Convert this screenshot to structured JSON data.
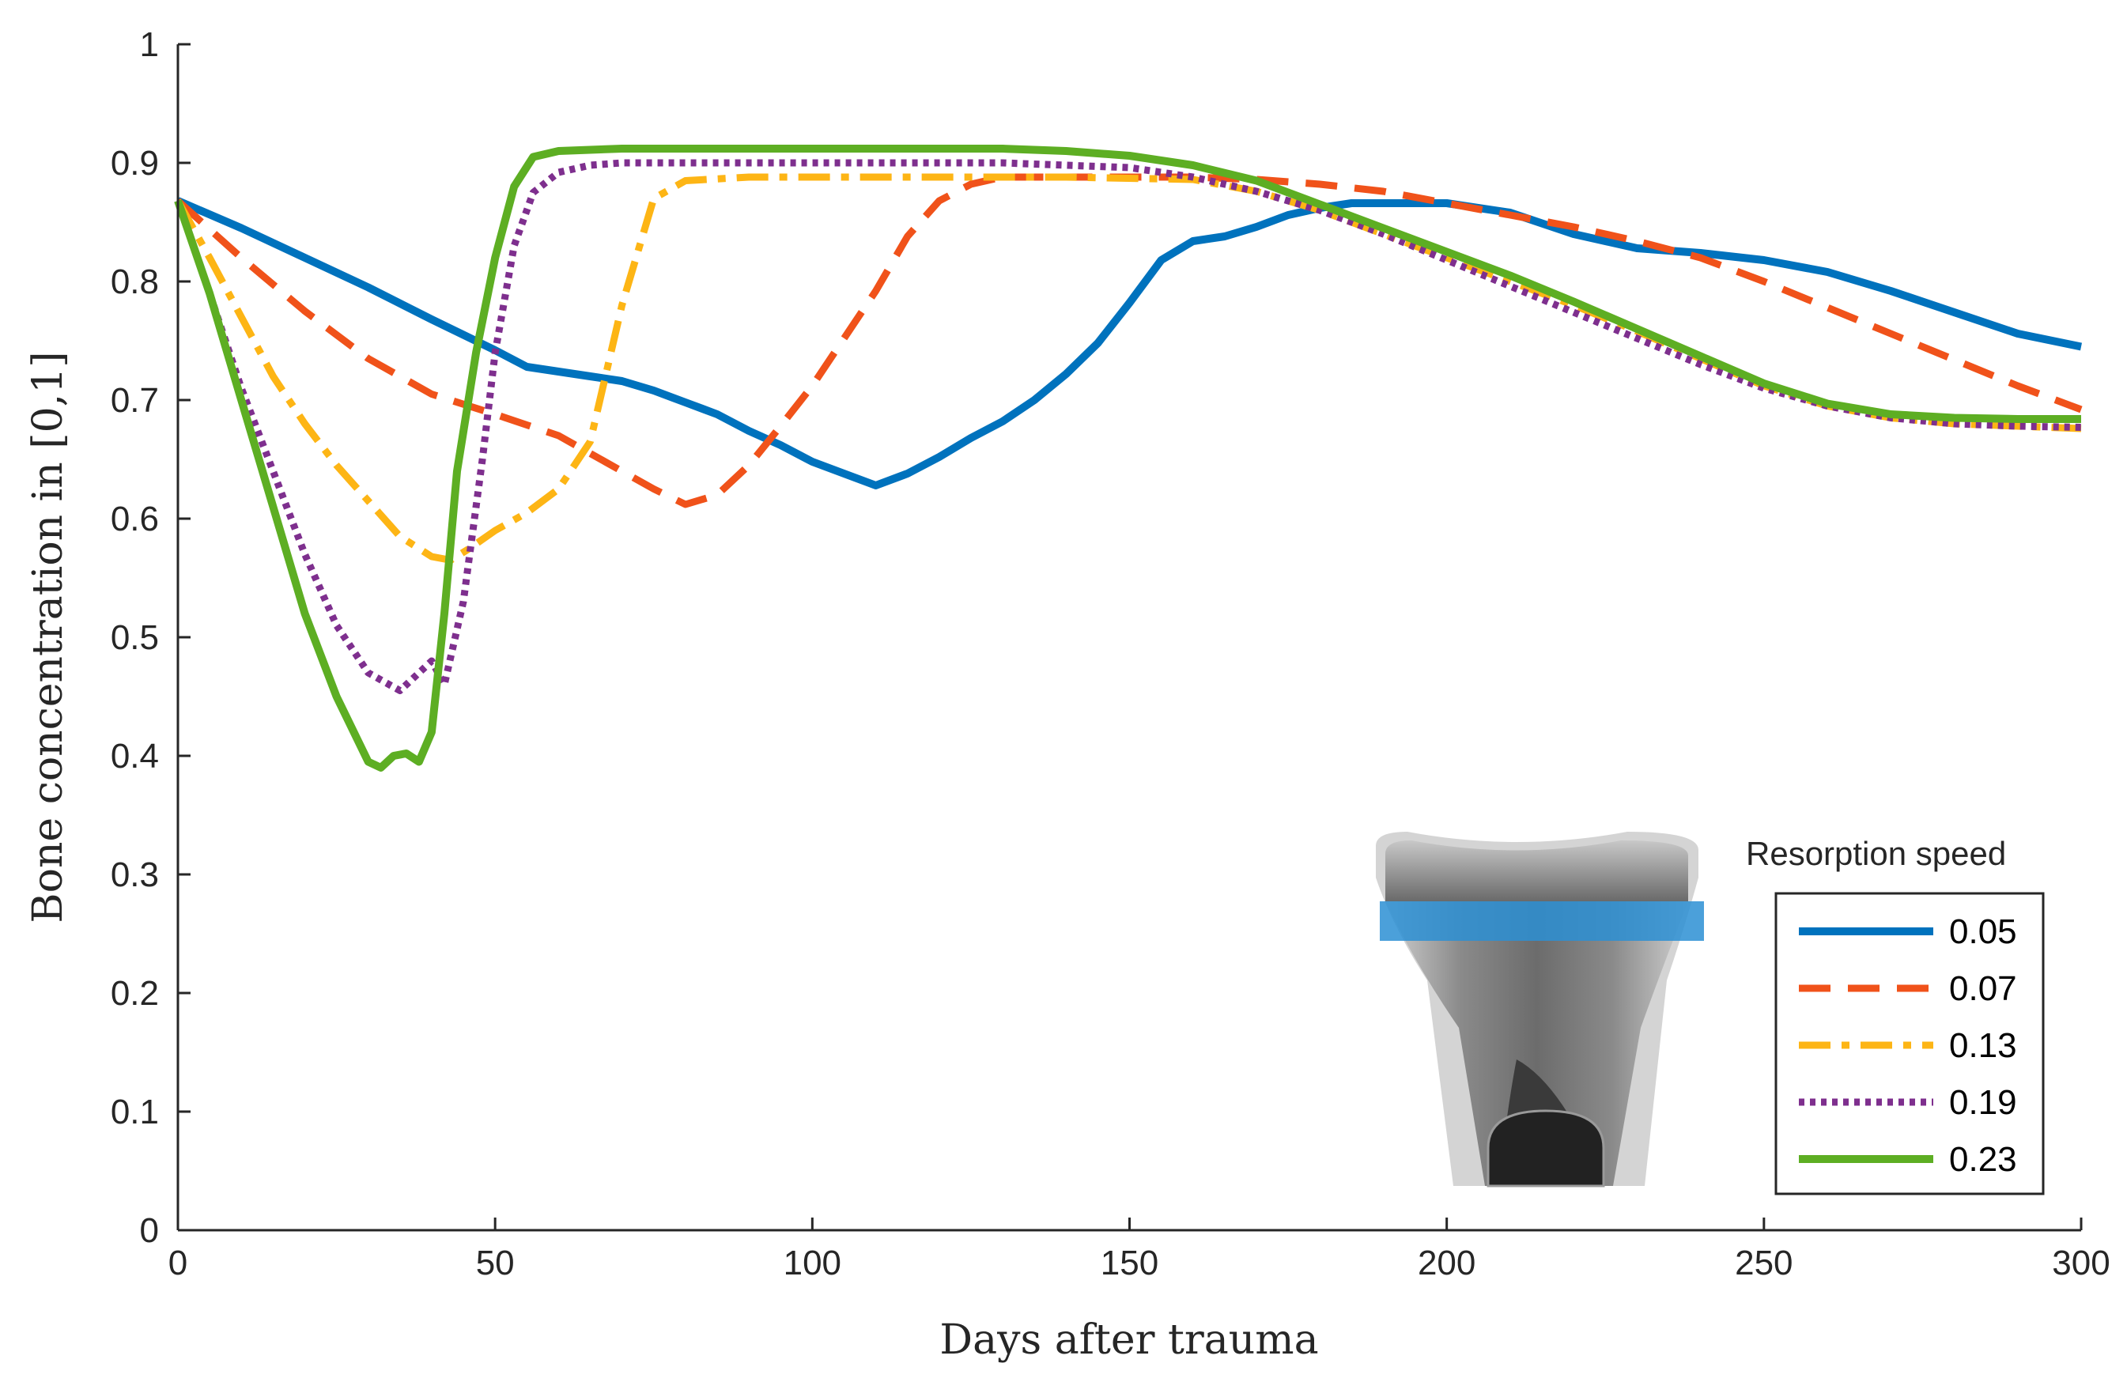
{
  "chart_data": {
    "type": "line",
    "xlabel": "Days after trauma",
    "ylabel": "Bone concentration in [0,1]",
    "xlim": [
      0,
      300
    ],
    "ylim": [
      0,
      1
    ],
    "xticks": [
      0,
      50,
      100,
      150,
      200,
      250,
      300
    ],
    "yticks": [
      0,
      0.1,
      0.2,
      0.3,
      0.4,
      0.5,
      0.6,
      0.7,
      0.8,
      0.9,
      1
    ],
    "grid": false,
    "legend_title": "Resorption speed",
    "legend_position": "bottom-right",
    "inset": "bone-cross-section-with-highlighted-band",
    "series": [
      {
        "name": "0.05",
        "color": "#0072BD",
        "dash": "solid",
        "x": [
          0,
          10,
          20,
          30,
          40,
          50,
          55,
          60,
          65,
          70,
          75,
          80,
          85,
          90,
          95,
          100,
          105,
          110,
          115,
          120,
          125,
          130,
          135,
          140,
          145,
          150,
          155,
          160,
          165,
          170,
          175,
          180,
          185,
          190,
          200,
          210,
          220,
          230,
          240,
          250,
          260,
          270,
          280,
          290,
          300
        ],
        "y": [
          0.868,
          0.845,
          0.82,
          0.795,
          0.768,
          0.742,
          0.728,
          0.724,
          0.72,
          0.716,
          0.708,
          0.698,
          0.688,
          0.674,
          0.662,
          0.648,
          0.638,
          0.628,
          0.638,
          0.652,
          0.668,
          0.682,
          0.7,
          0.722,
          0.748,
          0.782,
          0.818,
          0.834,
          0.838,
          0.846,
          0.856,
          0.862,
          0.866,
          0.866,
          0.866,
          0.858,
          0.84,
          0.828,
          0.824,
          0.818,
          0.808,
          0.792,
          0.774,
          0.756,
          0.745
        ]
      },
      {
        "name": "0.07",
        "color": "#F0521A",
        "dash": "dashed",
        "x": [
          0,
          10,
          20,
          30,
          40,
          50,
          60,
          70,
          75,
          80,
          85,
          90,
          95,
          100,
          105,
          110,
          115,
          120,
          125,
          130,
          140,
          150,
          160,
          170,
          180,
          190,
          200,
          210,
          220,
          230,
          240,
          250,
          260,
          270,
          280,
          290,
          300
        ],
        "y": [
          0.868,
          0.82,
          0.775,
          0.735,
          0.705,
          0.688,
          0.67,
          0.64,
          0.625,
          0.612,
          0.62,
          0.645,
          0.678,
          0.712,
          0.752,
          0.792,
          0.838,
          0.868,
          0.882,
          0.888,
          0.888,
          0.888,
          0.888,
          0.886,
          0.882,
          0.876,
          0.866,
          0.856,
          0.846,
          0.834,
          0.82,
          0.8,
          0.778,
          0.756,
          0.734,
          0.712,
          0.692
        ]
      },
      {
        "name": "0.13",
        "color": "#FDB515",
        "dash": "dashdot",
        "x": [
          0,
          5,
          10,
          15,
          20,
          25,
          30,
          35,
          40,
          43,
          46,
          50,
          55,
          60,
          65,
          70,
          75,
          80,
          90,
          100,
          120,
          140,
          160,
          170,
          180,
          190,
          200,
          210,
          220,
          230,
          240,
          250,
          260,
          270,
          280,
          290,
          300
        ],
        "y": [
          0.868,
          0.82,
          0.77,
          0.72,
          0.68,
          0.645,
          0.615,
          0.585,
          0.568,
          0.565,
          0.575,
          0.59,
          0.605,
          0.625,
          0.665,
          0.78,
          0.87,
          0.885,
          0.888,
          0.888,
          0.888,
          0.888,
          0.886,
          0.876,
          0.86,
          0.84,
          0.82,
          0.8,
          0.78,
          0.758,
          0.735,
          0.712,
          0.695,
          0.685,
          0.68,
          0.678,
          0.676
        ]
      },
      {
        "name": "0.19",
        "color": "#7E2F8E",
        "dash": "dotted",
        "x": [
          0,
          5,
          10,
          15,
          20,
          25,
          30,
          35,
          38,
          40,
          42,
          45,
          48,
          50,
          53,
          56,
          60,
          65,
          70,
          80,
          100,
          130,
          150,
          160,
          170,
          180,
          190,
          200,
          210,
          220,
          230,
          240,
          250,
          260,
          270,
          280,
          290,
          300
        ],
        "y": [
          0.868,
          0.79,
          0.71,
          0.64,
          0.57,
          0.51,
          0.47,
          0.455,
          0.47,
          0.48,
          0.46,
          0.53,
          0.65,
          0.74,
          0.83,
          0.875,
          0.892,
          0.898,
          0.9,
          0.9,
          0.9,
          0.9,
          0.896,
          0.888,
          0.876,
          0.86,
          0.84,
          0.818,
          0.796,
          0.774,
          0.752,
          0.73,
          0.71,
          0.695,
          0.685,
          0.68,
          0.678,
          0.677
        ]
      },
      {
        "name": "0.23",
        "color": "#5DAE23",
        "dash": "solid",
        "x": [
          0,
          5,
          10,
          15,
          20,
          25,
          30,
          32,
          34,
          36,
          38,
          40,
          42,
          44,
          47,
          50,
          53,
          56,
          60,
          70,
          90,
          110,
          130,
          140,
          150,
          160,
          170,
          180,
          190,
          200,
          210,
          220,
          230,
          240,
          250,
          260,
          270,
          280,
          290,
          300
        ],
        "y": [
          0.868,
          0.79,
          0.7,
          0.61,
          0.52,
          0.45,
          0.395,
          0.39,
          0.4,
          0.402,
          0.395,
          0.42,
          0.52,
          0.64,
          0.74,
          0.82,
          0.88,
          0.905,
          0.91,
          0.912,
          0.912,
          0.912,
          0.912,
          0.91,
          0.906,
          0.898,
          0.885,
          0.865,
          0.845,
          0.825,
          0.805,
          0.783,
          0.76,
          0.737,
          0.714,
          0.697,
          0.688,
          0.685,
          0.684,
          0.684
        ]
      }
    ]
  }
}
